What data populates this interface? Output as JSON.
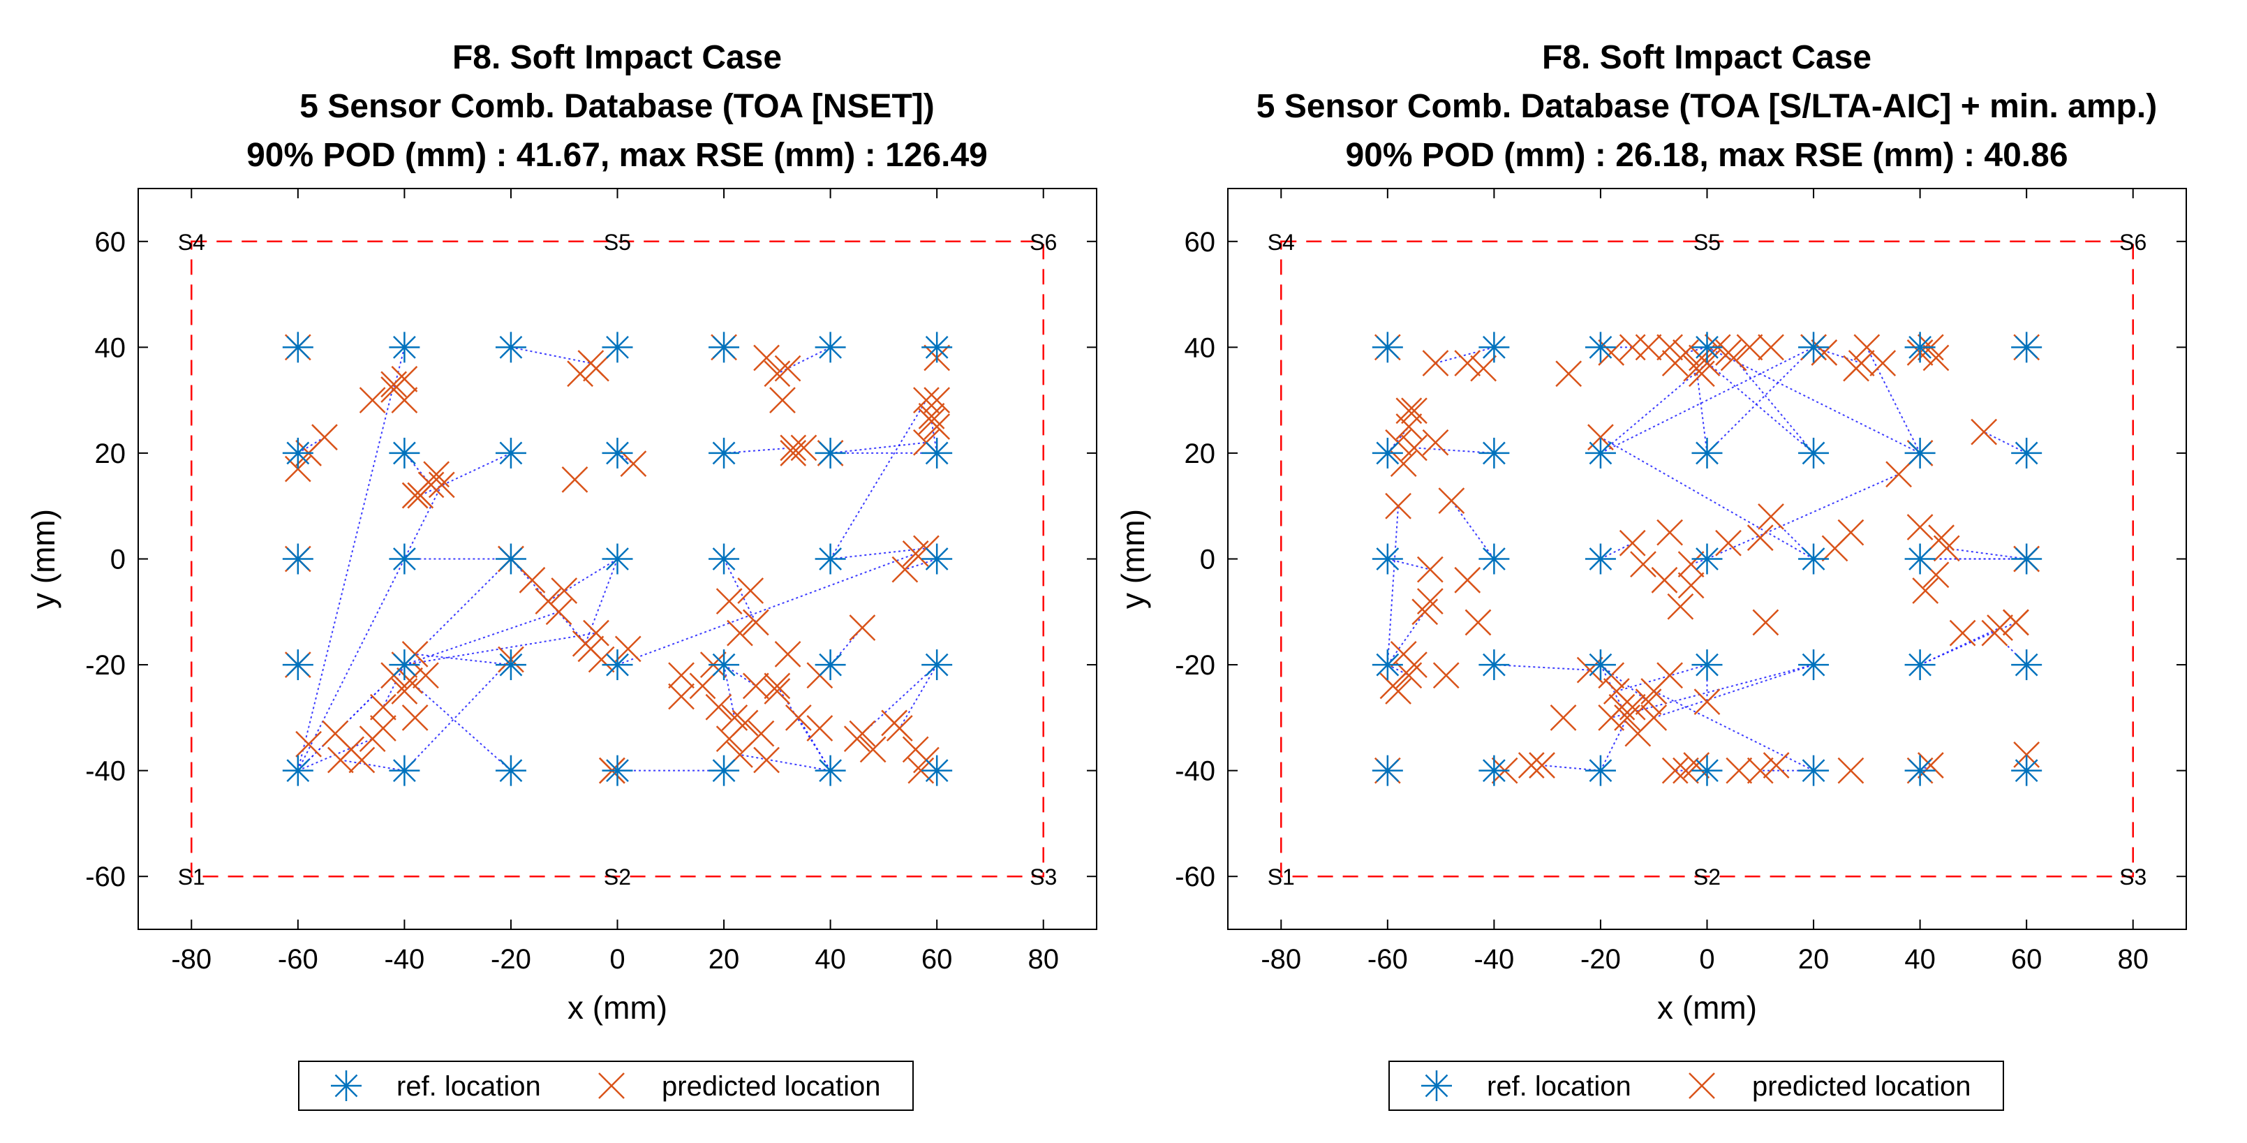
{
  "chart_data": [
    {
      "type": "scatter",
      "title": [
        "F8. Soft Impact Case",
        "5 Sensor Comb. Database (TOA [NSET])",
        "90% POD (mm) : 41.67, max RSE (mm) : 126.49"
      ],
      "xlabel": "x (mm)",
      "ylabel": "y (mm)",
      "xlim": [
        -90,
        90
      ],
      "ylim": [
        -70,
        70
      ],
      "xticks": [
        -80,
        -60,
        -40,
        -20,
        0,
        20,
        40,
        60,
        80
      ],
      "yticks": [
        -60,
        -40,
        -20,
        0,
        20,
        40,
        60
      ],
      "xtick_labels": [
        "-80",
        "-60",
        "-40",
        "-20",
        "0",
        "20",
        "40",
        "60",
        "80"
      ],
      "ytick_labels": [
        "-60",
        "-40",
        "-20",
        "0",
        "20",
        "40",
        "60"
      ],
      "sensors": [
        {
          "name": "S1",
          "x": -80,
          "y": -60
        },
        {
          "name": "S2",
          "x": 0,
          "y": -60
        },
        {
          "name": "S3",
          "x": 80,
          "y": -60
        },
        {
          "name": "S4",
          "x": -80,
          "y": 60
        },
        {
          "name": "S5",
          "x": 0,
          "y": 60
        },
        {
          "name": "S6",
          "x": 80,
          "y": 60
        }
      ],
      "legend": [
        "ref. location",
        "predicted location"
      ],
      "pairs": [
        [
          -60,
          40,
          -60,
          40
        ],
        [
          -40,
          40,
          -42,
          32
        ],
        [
          -20,
          40,
          -5,
          37
        ],
        [
          0,
          40,
          -4,
          36
        ],
        [
          20,
          40,
          20,
          40
        ],
        [
          40,
          40,
          30,
          35
        ],
        [
          60,
          40,
          60,
          38
        ],
        [
          -60,
          20,
          -55,
          23
        ],
        [
          -40,
          20,
          -35,
          14
        ],
        [
          -20,
          20,
          -37,
          12
        ],
        [
          0,
          20,
          3,
          18
        ],
        [
          20,
          20,
          33,
          21
        ],
        [
          40,
          20,
          58,
          22
        ],
        [
          60,
          20,
          59,
          26
        ],
        [
          -60,
          0,
          -60,
          0
        ],
        [
          -40,
          0,
          -20,
          0
        ],
        [
          -20,
          0,
          -16,
          -4
        ],
        [
          0,
          0,
          -6,
          -16
        ],
        [
          20,
          0,
          26,
          -12
        ],
        [
          40,
          0,
          58,
          2
        ],
        [
          60,
          0,
          54,
          -2
        ],
        [
          -60,
          -20,
          -60,
          -20
        ],
        [
          -40,
          -20,
          -44,
          -28
        ],
        [
          -20,
          -20,
          -38,
          -18
        ],
        [
          0,
          -20,
          56,
          1
        ],
        [
          20,
          -20,
          22,
          -30
        ],
        [
          40,
          -20,
          46,
          -13
        ],
        [
          60,
          -20,
          53,
          -32
        ],
        [
          -60,
          -40,
          -40,
          -20
        ],
        [
          -40,
          -40,
          -52,
          -38
        ],
        [
          -20,
          -40,
          -39,
          -23
        ],
        [
          0,
          -40,
          -1,
          -40
        ],
        [
          20,
          -40,
          -1,
          -40
        ],
        [
          40,
          -40,
          34,
          -30
        ],
        [
          60,
          -40,
          57,
          -40
        ],
        [
          -60,
          -40,
          -42,
          33
        ],
        [
          -60,
          -40,
          -33,
          14
        ],
        [
          -60,
          -40,
          -20,
          0
        ],
        [
          -60,
          -40,
          -46,
          -34
        ],
        [
          -40,
          -20,
          -11,
          -10
        ],
        [
          -40,
          -20,
          -4,
          -14
        ],
        [
          -40,
          -40,
          -20,
          -19
        ],
        [
          -20,
          0,
          -5,
          -17
        ],
        [
          0,
          0,
          -13,
          -8
        ],
        [
          20,
          -20,
          26,
          -24
        ],
        [
          40,
          -40,
          30,
          -24
        ],
        [
          40,
          -40,
          23,
          -37
        ],
        [
          60,
          -20,
          46,
          -33
        ],
        [
          60,
          20,
          40,
          20
        ],
        [
          40,
          0,
          58,
          30
        ]
      ],
      "extra_predicted": [
        [
          -60,
          17
        ],
        [
          -58,
          20
        ],
        [
          -46,
          30
        ],
        [
          -40,
          30
        ],
        [
          -40,
          34
        ],
        [
          -38,
          12
        ],
        [
          -34,
          16
        ],
        [
          -8,
          15
        ],
        [
          -7,
          35
        ],
        [
          28,
          38
        ],
        [
          32,
          36
        ],
        [
          31,
          30
        ],
        [
          35,
          21
        ],
        [
          33,
          20
        ],
        [
          60,
          30
        ],
        [
          59,
          27
        ],
        [
          60,
          25
        ],
        [
          -58,
          -35
        ],
        [
          -53,
          -33
        ],
        [
          -48,
          -38
        ],
        [
          -44,
          -32
        ],
        [
          -40,
          -25
        ],
        [
          -36,
          -22
        ],
        [
          -10,
          -6
        ],
        [
          -3,
          -19
        ],
        [
          2,
          -17
        ],
        [
          12,
          -26
        ],
        [
          16,
          -24
        ],
        [
          18,
          -20
        ],
        [
          21,
          -8
        ],
        [
          23,
          -14
        ],
        [
          24,
          -31
        ],
        [
          27,
          -33
        ],
        [
          30,
          -25
        ],
        [
          32,
          -18
        ],
        [
          38,
          -22
        ],
        [
          45,
          -34
        ],
        [
          48,
          -36
        ],
        [
          52,
          -31
        ],
        [
          56,
          -36
        ],
        [
          58,
          -38
        ],
        [
          38,
          -32
        ],
        [
          28,
          -38
        ],
        [
          21,
          -34
        ],
        [
          25,
          -6
        ],
        [
          19,
          -28
        ],
        [
          12,
          -22
        ],
        [
          -42,
          -22
        ],
        [
          -38,
          -30
        ],
        [
          -50,
          -36
        ]
      ]
    },
    {
      "type": "scatter",
      "title": [
        "F8. Soft Impact Case",
        "5 Sensor Comb. Database (TOA [S/LTA-AIC] + min. amp.)",
        "90% POD (mm) : 26.18, max RSE (mm) : 40.86"
      ],
      "xlabel": "x (mm)",
      "ylabel": "y (mm)",
      "xlim": [
        -90,
        90
      ],
      "ylim": [
        -70,
        70
      ],
      "xticks": [
        -80,
        -60,
        -40,
        -20,
        0,
        20,
        40,
        60,
        80
      ],
      "yticks": [
        -60,
        -40,
        -20,
        0,
        20,
        40,
        60
      ],
      "xtick_labels": [
        "-80",
        "-60",
        "-40",
        "-20",
        "0",
        "20",
        "40",
        "60",
        "80"
      ],
      "ytick_labels": [
        "-60",
        "-40",
        "-20",
        "0",
        "20",
        "40",
        "60"
      ],
      "sensors": [
        {
          "name": "S1",
          "x": -80,
          "y": -60
        },
        {
          "name": "S2",
          "x": 0,
          "y": -60
        },
        {
          "name": "S3",
          "x": 80,
          "y": -60
        },
        {
          "name": "S4",
          "x": -80,
          "y": 60
        },
        {
          "name": "S5",
          "x": 0,
          "y": 60
        },
        {
          "name": "S6",
          "x": 80,
          "y": 60
        }
      ],
      "legend": [
        "ref. location",
        "predicted location"
      ],
      "pairs": [
        [
          -60,
          40,
          -60,
          40
        ],
        [
          -40,
          40,
          -51,
          37
        ],
        [
          -20,
          40,
          -14,
          40
        ],
        [
          0,
          40,
          -4,
          39
        ],
        [
          20,
          40,
          29,
          37
        ],
        [
          40,
          40,
          42,
          40
        ],
        [
          60,
          40,
          60,
          40
        ],
        [
          -60,
          20,
          -56,
          25
        ],
        [
          -40,
          20,
          -55,
          21
        ],
        [
          -20,
          20,
          0,
          37
        ],
        [
          0,
          20,
          -2,
          36
        ],
        [
          20,
          20,
          5,
          38
        ],
        [
          40,
          20,
          30,
          40
        ],
        [
          60,
          20,
          52,
          24
        ],
        [
          -60,
          0,
          -52,
          -2
        ],
        [
          -40,
          0,
          -48,
          11
        ],
        [
          -20,
          0,
          -14,
          3
        ],
        [
          0,
          0,
          -3,
          -1
        ],
        [
          20,
          0,
          12,
          8
        ],
        [
          40,
          0,
          60,
          0
        ],
        [
          60,
          0,
          45,
          2
        ],
        [
          -60,
          -20,
          -56,
          -22
        ],
        [
          -40,
          -20,
          -22,
          -21
        ],
        [
          -20,
          -20,
          -11,
          -27
        ],
        [
          0,
          -20,
          -17,
          -25
        ],
        [
          20,
          -20,
          -10,
          -30
        ],
        [
          40,
          -20,
          58,
          -12
        ],
        [
          60,
          -20,
          54,
          -14
        ],
        [
          -60,
          -40,
          -60,
          -40
        ],
        [
          -40,
          -40,
          -38,
          -40
        ],
        [
          -20,
          -40,
          -31,
          -39
        ],
        [
          0,
          -40,
          -6,
          -40
        ],
        [
          20,
          -40,
          10,
          -40
        ],
        [
          40,
          -40,
          42,
          -39
        ],
        [
          60,
          -40,
          60,
          -37
        ],
        [
          -20,
          20,
          20,
          40
        ],
        [
          0,
          20,
          20,
          40
        ],
        [
          0,
          40,
          40,
          20
        ],
        [
          20,
          20,
          -1,
          38
        ],
        [
          20,
          0,
          -20,
          23
        ],
        [
          0,
          0,
          36,
          16
        ],
        [
          40,
          0,
          60,
          0
        ],
        [
          -60,
          -20,
          -58,
          10
        ],
        [
          -60,
          -20,
          -53,
          -10
        ],
        [
          -20,
          -20,
          -16,
          -28
        ],
        [
          20,
          -20,
          -18,
          -30
        ],
        [
          40,
          -20,
          55,
          -13
        ],
        [
          -20,
          -40,
          -15,
          -30
        ],
        [
          20,
          -40,
          -10,
          -25
        ],
        [
          0,
          -20,
          0,
          -27
        ]
      ],
      "extra_predicted": [
        [
          -56,
          28
        ],
        [
          -58,
          22
        ],
        [
          -45,
          37
        ],
        [
          -42,
          36
        ],
        [
          -26,
          35
        ],
        [
          -18,
          39
        ],
        [
          -11,
          40
        ],
        [
          -7,
          40
        ],
        [
          -6,
          37
        ],
        [
          -1,
          35
        ],
        [
          2,
          40
        ],
        [
          4,
          39
        ],
        [
          8,
          40
        ],
        [
          12,
          40
        ],
        [
          22,
          39
        ],
        [
          28,
          36
        ],
        [
          33,
          37
        ],
        [
          40,
          39
        ],
        [
          43,
          38
        ],
        [
          -55,
          28
        ],
        [
          -57,
          18
        ],
        [
          -51,
          22
        ],
        [
          -52,
          -8
        ],
        [
          -43,
          -12
        ],
        [
          -45,
          -4
        ],
        [
          -12,
          -1
        ],
        [
          -8,
          -4
        ],
        [
          -7,
          5
        ],
        [
          -5,
          -9
        ],
        [
          -3,
          -5
        ],
        [
          4,
          3
        ],
        [
          10,
          4
        ],
        [
          11,
          -12
        ],
        [
          24,
          2
        ],
        [
          27,
          5
        ],
        [
          40,
          6
        ],
        [
          41,
          -6
        ],
        [
          43,
          -3
        ],
        [
          44,
          4
        ],
        [
          48,
          -14
        ],
        [
          -58,
          -25
        ],
        [
          -55,
          -20
        ],
        [
          -49,
          -22
        ],
        [
          -27,
          -30
        ],
        [
          -18,
          -22
        ],
        [
          -14,
          -28
        ],
        [
          -13,
          -33
        ],
        [
          -7,
          -22
        ],
        [
          -4,
          -40
        ],
        [
          -2,
          -39
        ],
        [
          6,
          -40
        ],
        [
          13,
          -39
        ],
        [
          27,
          -40
        ],
        [
          40,
          -40
        ],
        [
          58,
          -12
        ],
        [
          -33,
          -39
        ],
        [
          -57,
          -18
        ],
        [
          -59,
          -24
        ]
      ]
    }
  ]
}
